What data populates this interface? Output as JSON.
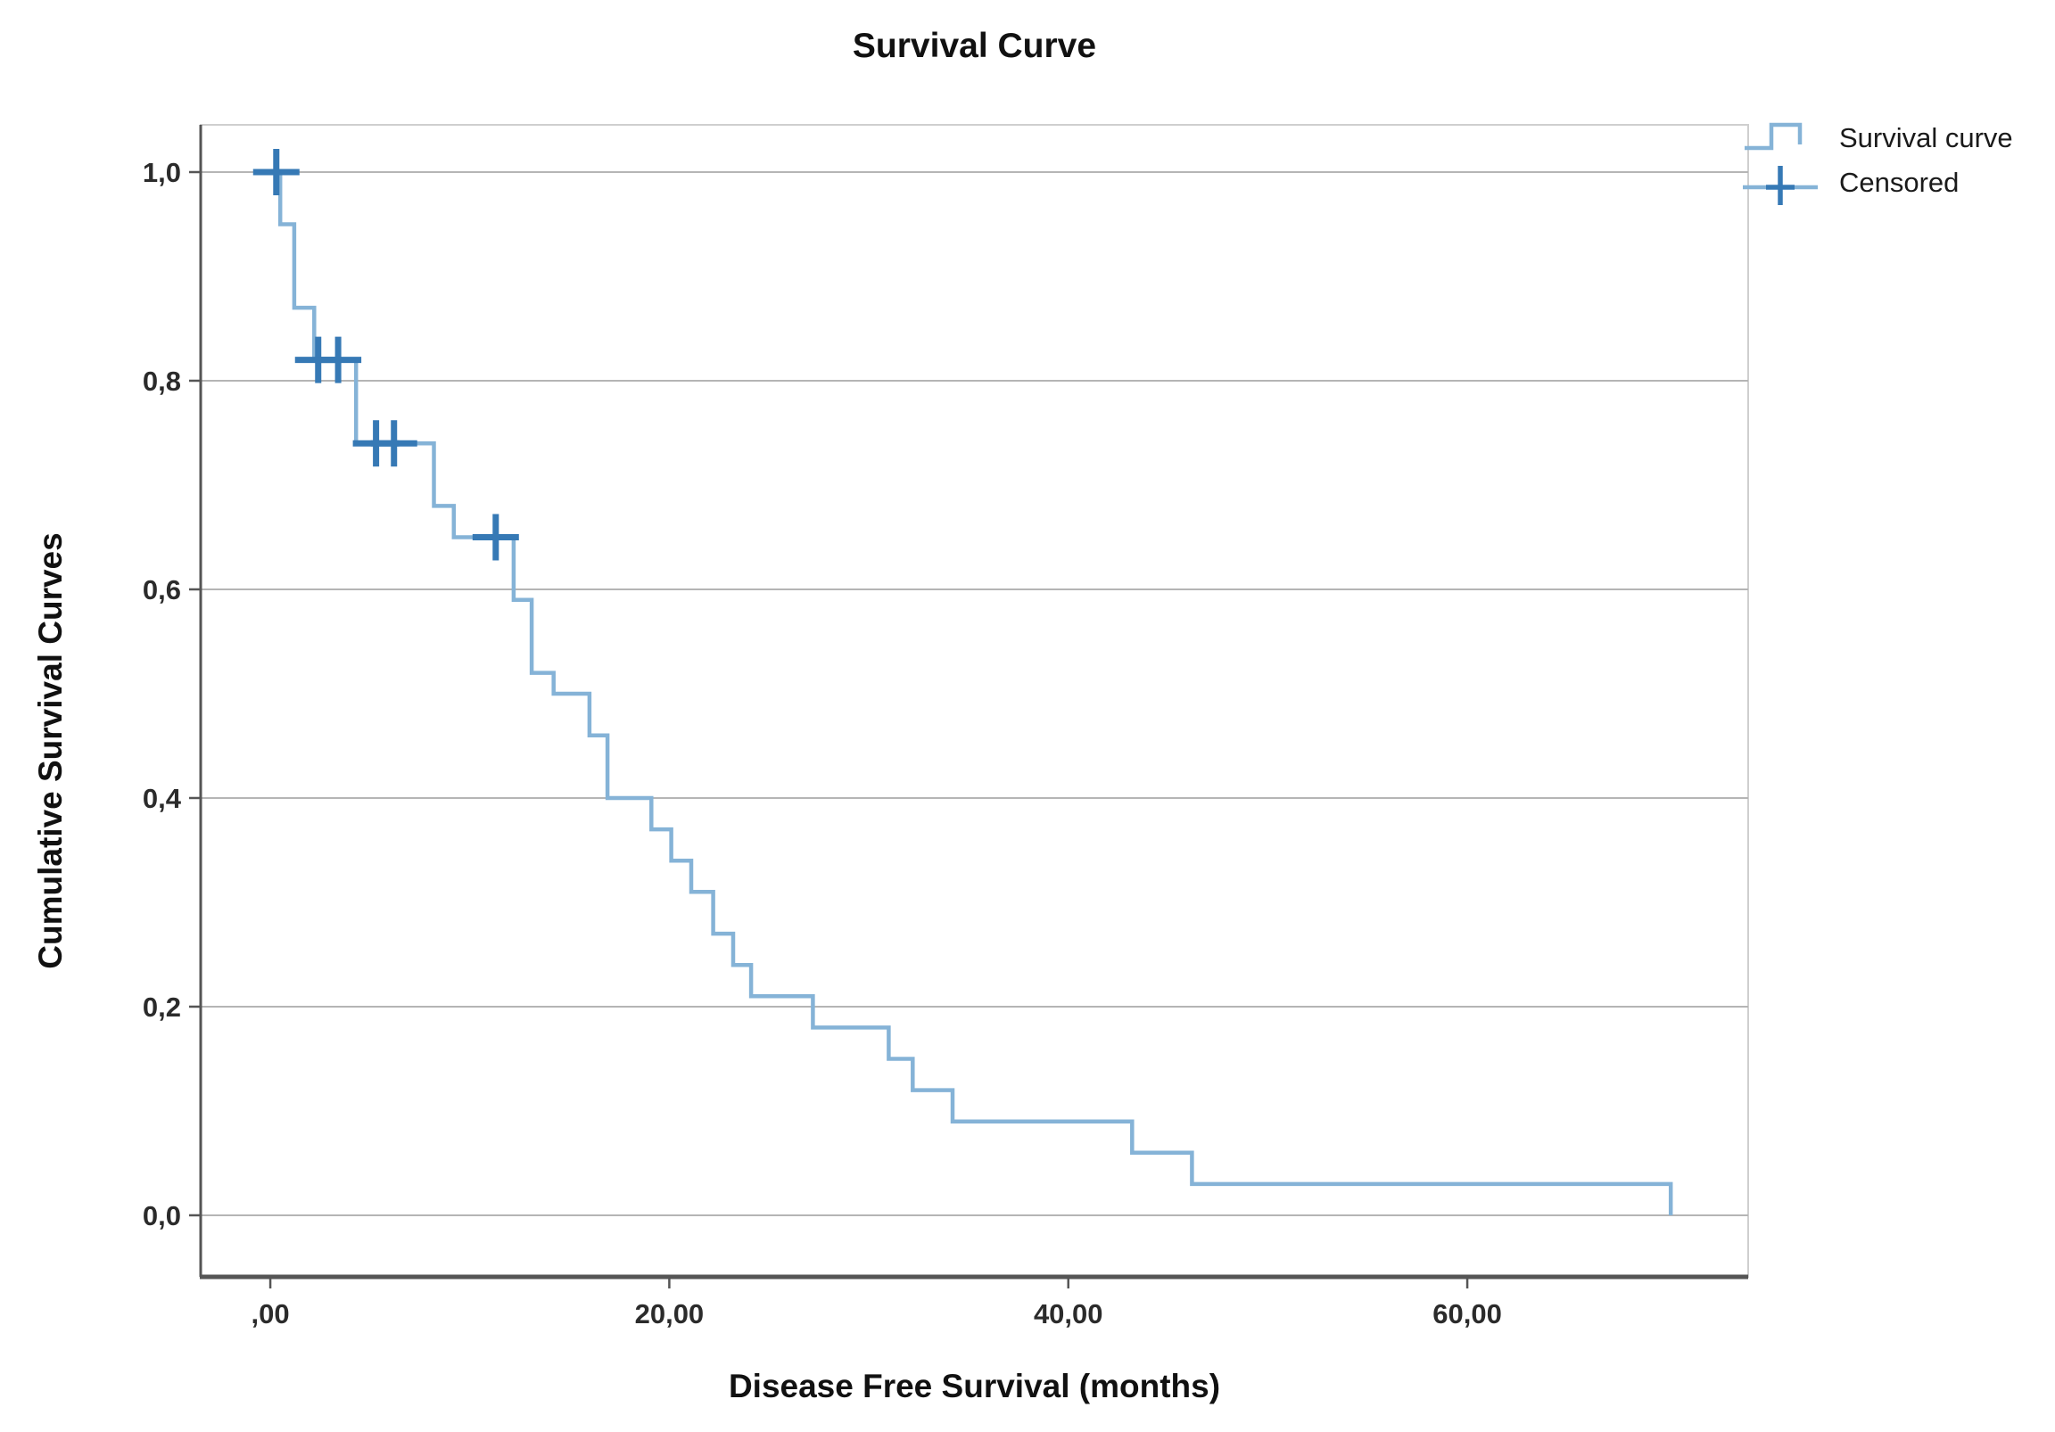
{
  "title": "Survival Curve",
  "legend": {
    "items": [
      {
        "label": "Survival curve",
        "icon": "step-line-icon"
      },
      {
        "label": "Censored",
        "icon": "plus-marker-icon"
      }
    ]
  },
  "colors": {
    "curve": "#85b3d7",
    "censored": "#3679b5",
    "gridline": "#b5b5b5",
    "frame": "#cfcfcf",
    "axis": "#555555",
    "tick_text": "#2b2b2b",
    "title_text": "#111111",
    "background": "#ffffff"
  },
  "chart_data": {
    "type": "line",
    "subtype": "kaplan-meier-step-curve",
    "title": "Survival Curve",
    "xlabel": "Disease Free Survival (months)",
    "ylabel": "Cumulative Survival Curves",
    "grid": "horizontal",
    "legend_position": "top-right",
    "xlim": [
      -3.49,
      74.08
    ],
    "ylim": [
      -0.059,
      1.0453
    ],
    "x_ticks": [
      {
        "value": 0,
        "label": ",00"
      },
      {
        "value": 20,
        "label": "20,00"
      },
      {
        "value": 40,
        "label": "40,00"
      },
      {
        "value": 60,
        "label": "60,00"
      }
    ],
    "y_ticks": [
      {
        "value": 0.0,
        "label": "0,0"
      },
      {
        "value": 0.2,
        "label": "0,2"
      },
      {
        "value": 0.4,
        "label": "0,4"
      },
      {
        "value": 0.6,
        "label": "0,6"
      },
      {
        "value": 0.8,
        "label": "0,8"
      },
      {
        "value": 1.0,
        "label": "1,0"
      }
    ],
    "series": [
      {
        "name": "Survival curve",
        "style": "step",
        "points": [
          [
            0.0,
            1.0
          ],
          [
            0.5,
            0.95
          ],
          [
            1.2,
            0.87
          ],
          [
            2.2,
            0.82
          ],
          [
            4.3,
            0.74
          ],
          [
            8.2,
            0.68
          ],
          [
            9.2,
            0.65
          ],
          [
            12.2,
            0.59
          ],
          [
            13.1,
            0.52
          ],
          [
            14.2,
            0.5
          ],
          [
            16.0,
            0.46
          ],
          [
            16.9,
            0.4
          ],
          [
            19.1,
            0.37
          ],
          [
            20.1,
            0.34
          ],
          [
            21.1,
            0.31
          ],
          [
            22.2,
            0.27
          ],
          [
            23.2,
            0.24
          ],
          [
            24.1,
            0.21
          ],
          [
            27.2,
            0.18
          ],
          [
            31.0,
            0.15
          ],
          [
            32.2,
            0.12
          ],
          [
            34.2,
            0.09
          ],
          [
            43.2,
            0.06
          ],
          [
            46.2,
            0.03
          ],
          [
            70.2,
            0.0
          ]
        ]
      }
    ],
    "censored_points": [
      [
        0.3,
        1.0
      ],
      [
        2.4,
        0.82
      ],
      [
        3.4,
        0.82
      ],
      [
        5.3,
        0.74
      ],
      [
        6.2,
        0.74
      ],
      [
        11.3,
        0.65
      ]
    ]
  }
}
